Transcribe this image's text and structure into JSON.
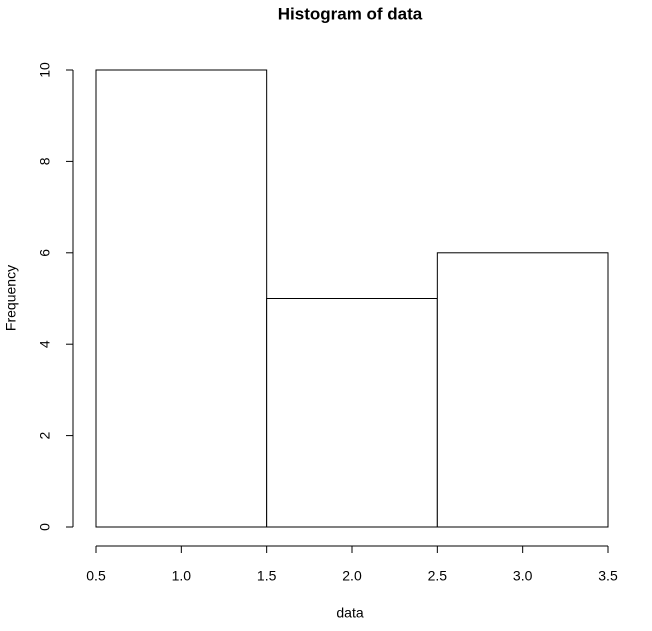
{
  "chart_data": {
    "type": "histogram",
    "title": "Histogram of data",
    "x_label": "data",
    "y_label": "Frequency",
    "bins": [
      0.5,
      1.5,
      2.5,
      3.5
    ],
    "counts": [
      10,
      5,
      6
    ],
    "color": "#ffffff",
    "xlim": [
      0.5,
      3.5
    ],
    "xticks": [
      0.5,
      {
        "value": 1,
        "label": "1.0"
      },
      1.5,
      {
        "value": 2,
        "label": "2.0"
      },
      2.5,
      {
        "value": 3,
        "label": "3.0"
      },
      3.5
    ],
    "ylim": [
      0,
      10
    ],
    "yticks": [
      0,
      2,
      4,
      6,
      8,
      10
    ]
  }
}
